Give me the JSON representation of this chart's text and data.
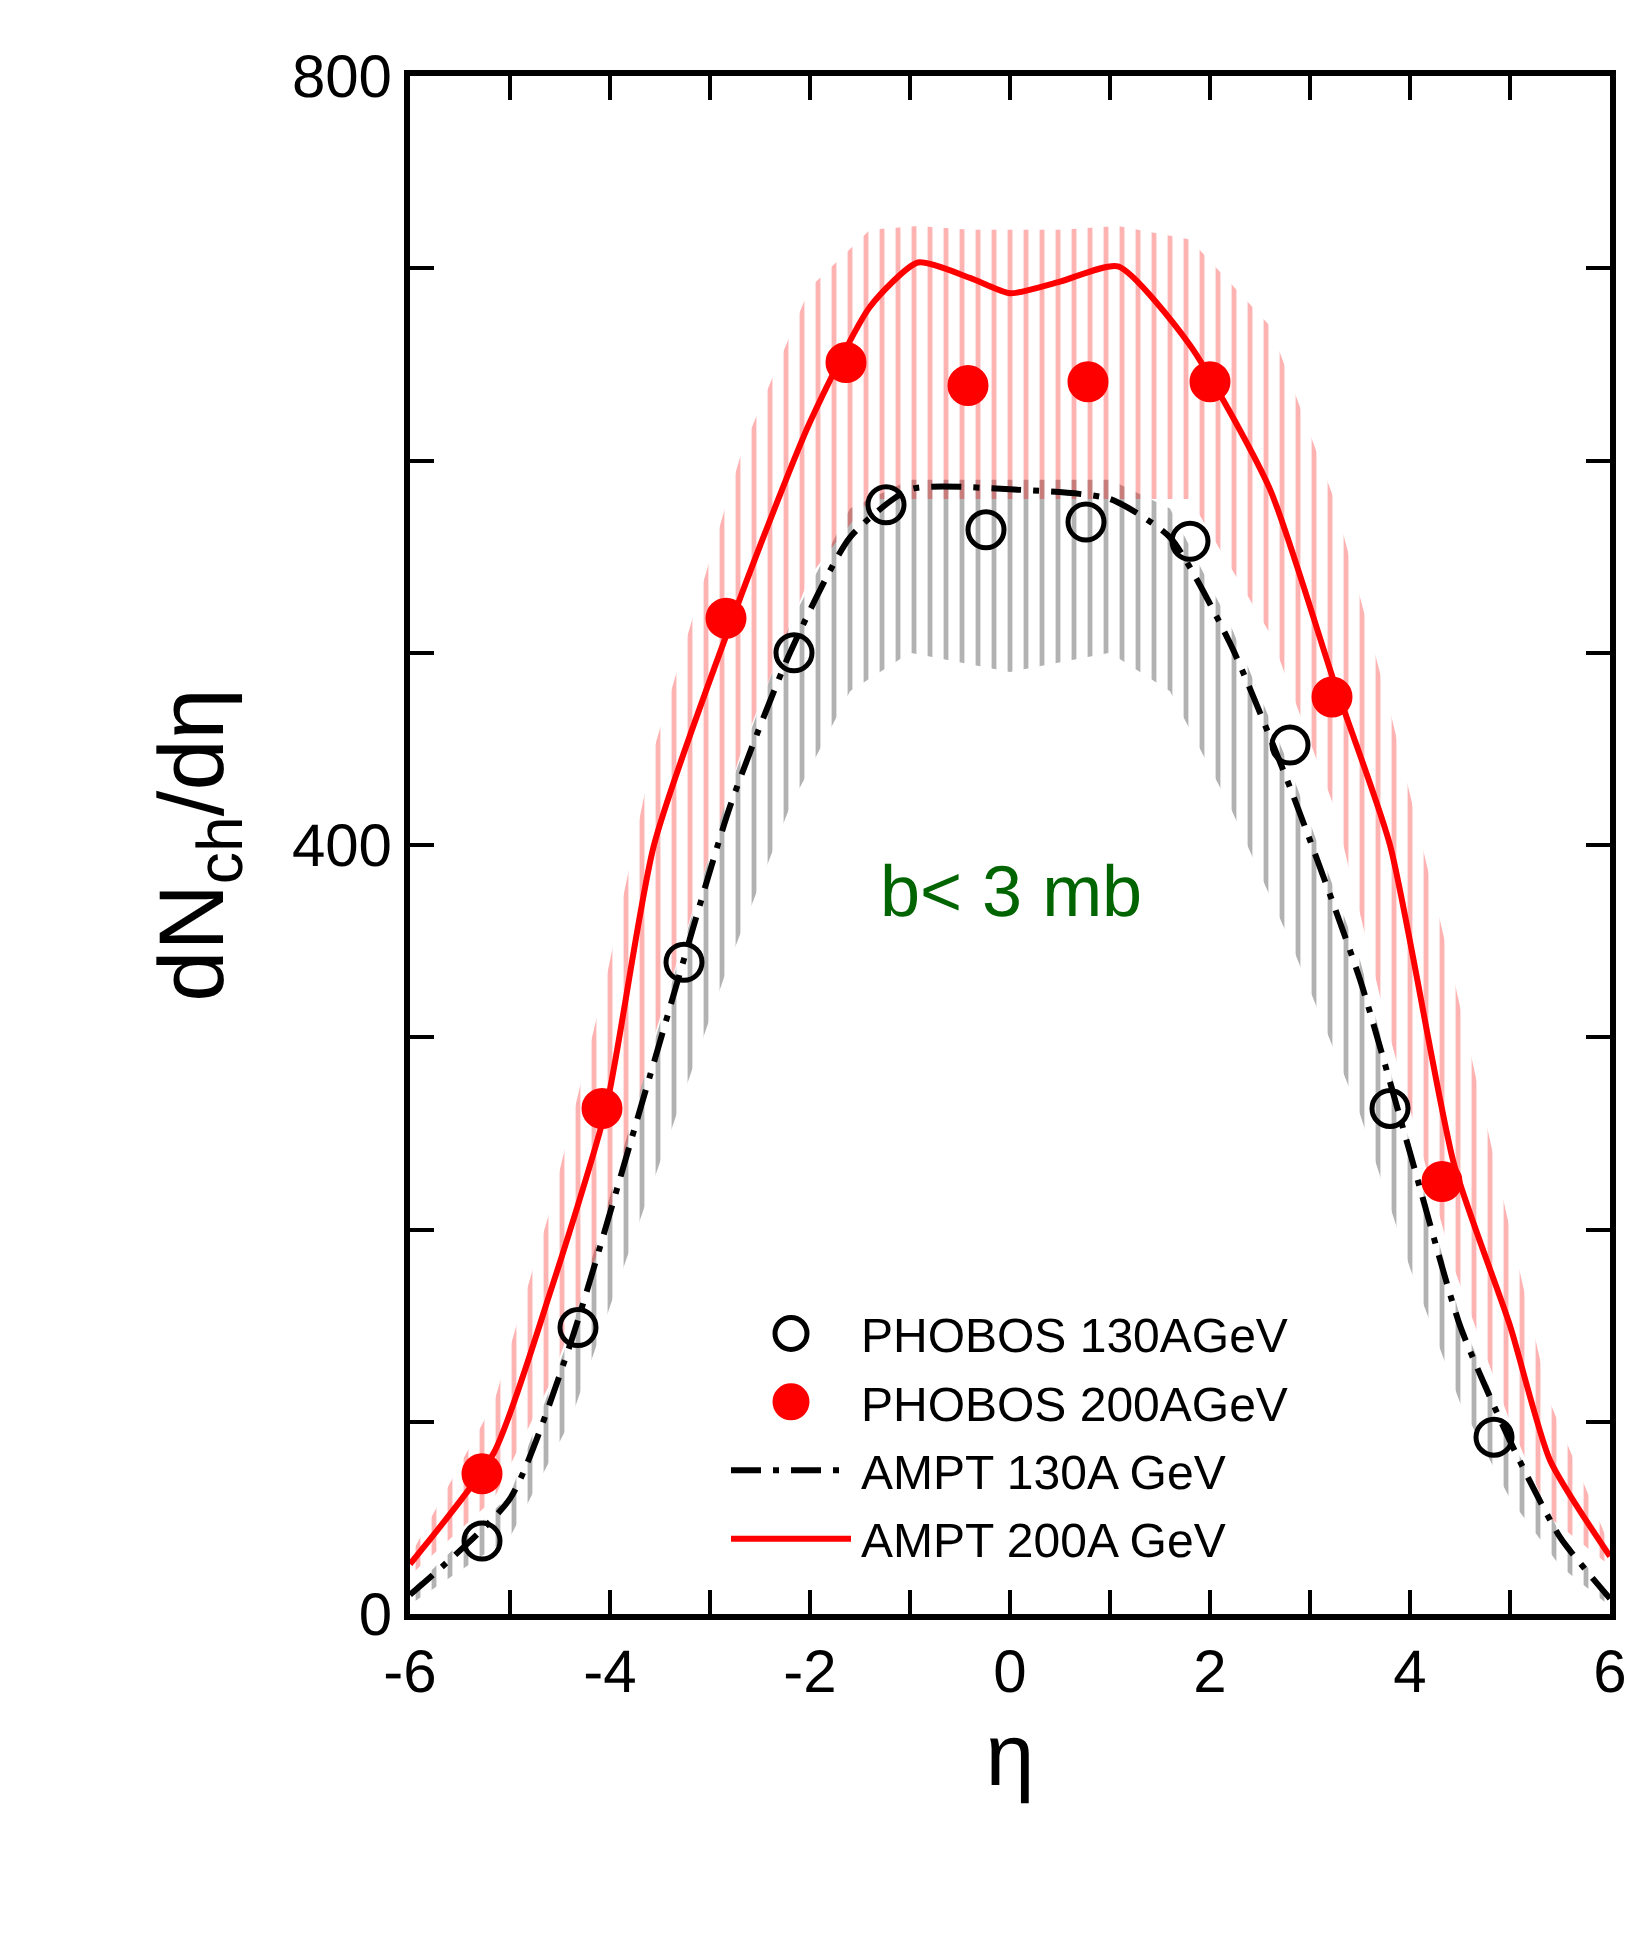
{
  "chart_data": {
    "type": "scatter",
    "xlabel": "η",
    "ylabel": "dN$_{ch}$/dη",
    "annotations": [
      "b< 3 mb"
    ],
    "xlim": [
      -6,
      6
    ],
    "ylim": [
      0,
      800
    ],
    "xticks": [
      -6,
      {
        "value": -5,
        "label": null
      },
      -4,
      {
        "value": -3,
        "label": null
      },
      -2,
      {
        "value": -1,
        "label": null
      },
      0,
      {
        "value": 1,
        "label": null
      },
      2,
      {
        "value": 3,
        "label": null
      },
      4,
      {
        "value": 5,
        "label": null
      },
      6
    ],
    "yticks": [
      0,
      {
        "value": 100,
        "label": null
      },
      {
        "value": 200,
        "label": null
      },
      {
        "value": 300,
        "label": null
      },
      400,
      {
        "value": 500,
        "label": null
      },
      {
        "value": 600,
        "label": null
      },
      {
        "value": 700,
        "label": null
      },
      800
    ],
    "legend": "bottom",
    "series": [
      {
        "name": "PHOBOS 130AGeV",
        "marker": "circle-open",
        "color": "#000000",
        "x": [
          -5.28,
          -4.32,
          -3.26,
          -2.16,
          -1.24,
          -0.24,
          0.76,
          1.8,
          2.8,
          3.8,
          4.84
        ],
        "values": [
          38,
          149,
          339,
          500,
          577,
          564,
          568,
          558,
          452,
          263,
          92
        ]
      },
      {
        "name": "PHOBOS 200AGeV",
        "marker": "circle",
        "color": "#ff0000",
        "x": [
          -5.28,
          -4.08,
          -2.84,
          -1.64,
          -0.42,
          0.78,
          2.0,
          3.22,
          4.32
        ],
        "values": [
          73,
          263,
          518,
          651,
          639,
          641,
          641,
          477,
          225
        ]
      },
      {
        "name": "AMPT 130A GeV",
        "type": "line",
        "marker": "none",
        "line_style": "dashed",
        "color": "#000000",
        "x": [
          -6,
          -5,
          -4.4,
          -3.6,
          -2.8,
          -2.2,
          -1.6,
          -1,
          0,
          1,
          1.6,
          2.2,
          2.8,
          3.5,
          4,
          4.5,
          5,
          5.5,
          6
        ],
        "values": [
          10,
          60,
          140,
          280,
          420,
          500,
          560,
          585,
          585,
          580,
          560,
          505,
          430,
          330,
          240,
          150,
          90,
          40,
          8
        ],
        "lower": [
          5,
          40,
          100,
          220,
          340,
          420,
          480,
          500,
          490,
          500,
          480,
          420,
          350,
          260,
          180,
          110,
          60,
          25,
          4
        ],
        "upper": [
          12,
          62,
          145,
          290,
          430,
          515,
          575,
          590,
          590,
          590,
          575,
          515,
          440,
          340,
          245,
          155,
          92,
          42,
          10
        ]
      },
      {
        "name": "AMPT 200A GeV",
        "type": "line",
        "marker": "none",
        "line_style": "solid",
        "color": "#ff0000",
        "x": [
          -6,
          -5.16,
          -4.6,
          -4.04,
          -3.56,
          -2.68,
          -2,
          -1.4,
          -0.92,
          -0.4,
          0,
          0.5,
          1.08,
          1.8,
          2.6,
          3.24,
          3.8,
          4.44,
          5,
          5.4,
          6
        ],
        "values": [
          26,
          84,
          167,
          263,
          400,
          531,
          620,
          680,
          703,
          695,
          687,
          693,
          701,
          660,
          585,
          485,
          400,
          234,
          150,
          80,
          30
        ],
        "lower": [
          20,
          60,
          120,
          200,
          300,
          450,
          540,
          580,
          580,
          580,
          580,
          580,
          580,
          580,
          510,
          420,
          300,
          180,
          100,
          50,
          25
        ],
        "upper": [
          30,
          110,
          210,
          330,
          450,
          605,
          690,
          720,
          722,
          720,
          720,
          720,
          722,
          715,
          670,
          580,
          470,
          330,
          200,
          110,
          35
        ]
      }
    ]
  }
}
